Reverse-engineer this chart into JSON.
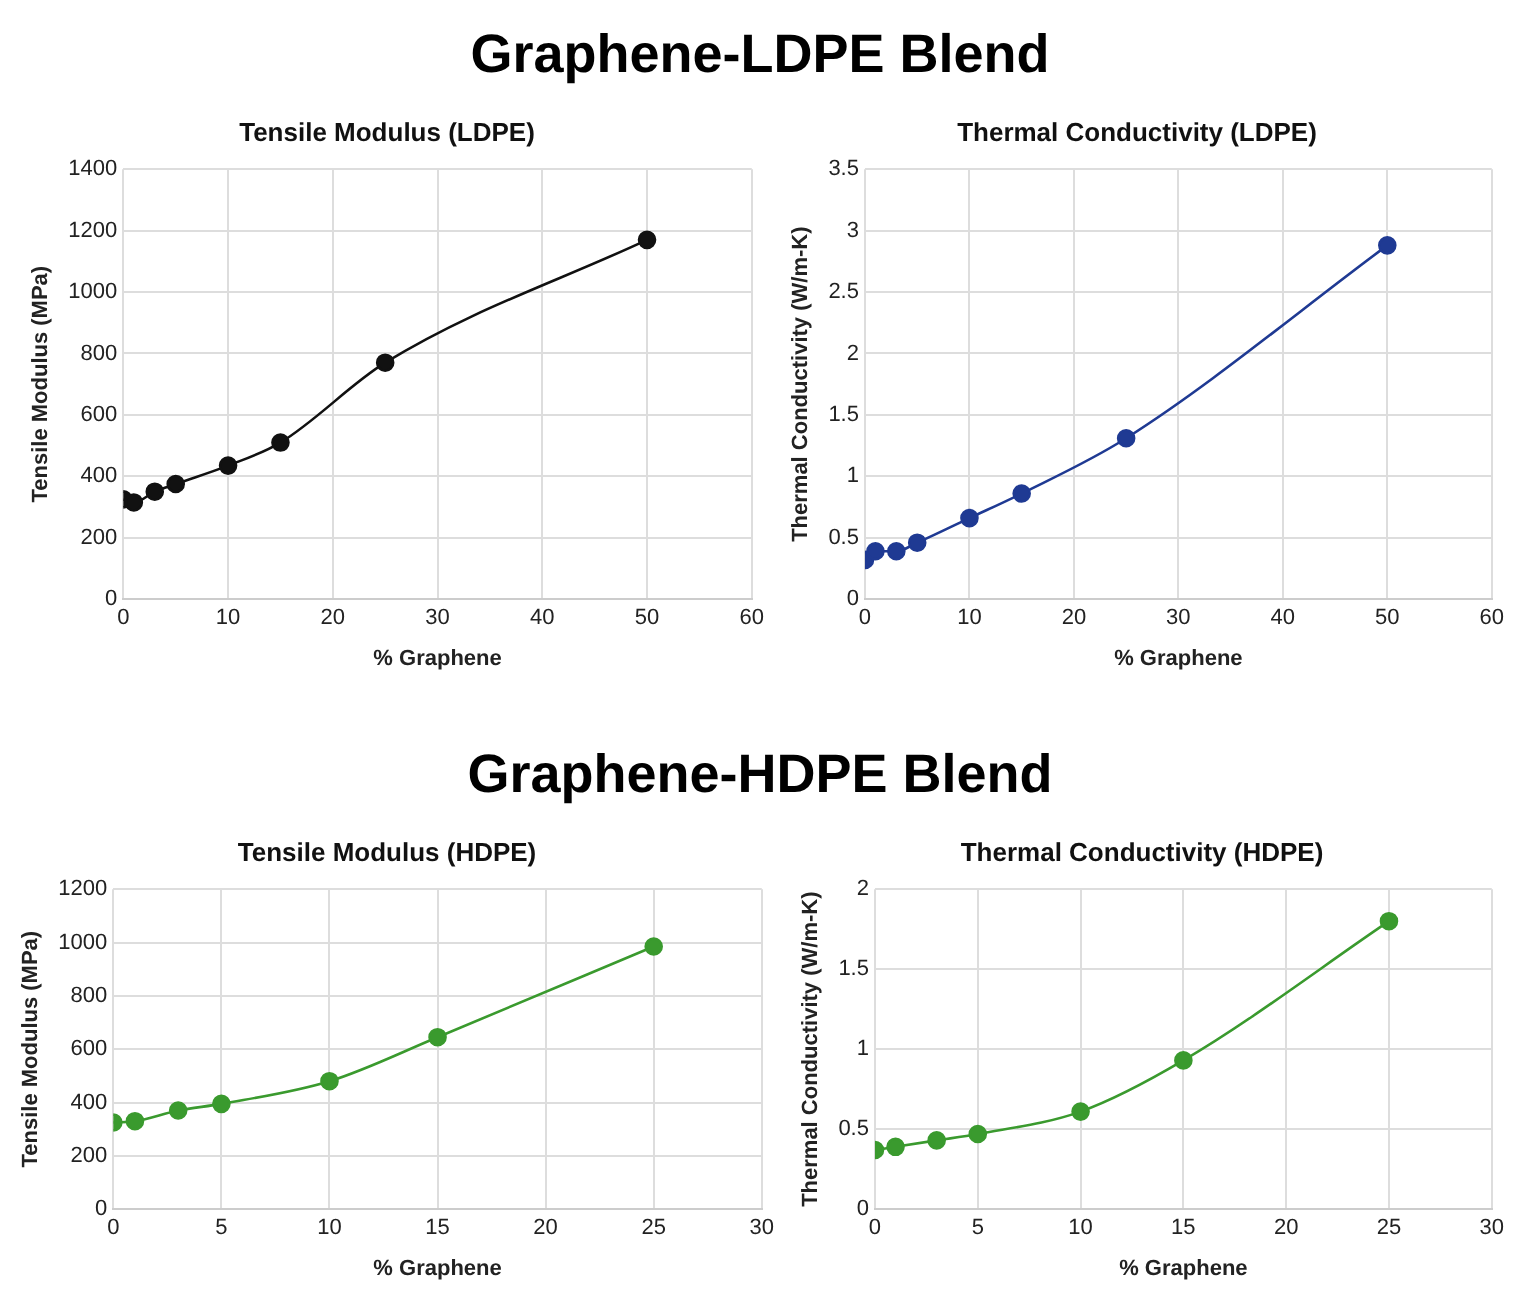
{
  "chart_data": [
    {
      "type": "line",
      "title": "Tensile Modulus (LDPE)",
      "xlabel": "% Graphene",
      "ylabel": "Tensile Modulus (MPa)",
      "annotations": [
        "Graphene-LDPE Blend"
      ],
      "xlim": [
        0,
        60
      ],
      "xticks": [
        0,
        10,
        20,
        30,
        40,
        50,
        60
      ],
      "ylim": [
        0,
        1400
      ],
      "yticks": [
        0,
        200,
        400,
        600,
        800,
        1000,
        1200,
        1400
      ],
      "grid": true,
      "marker": "circle",
      "legend": false,
      "series": [
        {
          "color": "#111111",
          "x": [
            0,
            1,
            3,
            5,
            10,
            15,
            25,
            50
          ],
          "values": [
            325,
            315,
            350,
            375,
            435,
            510,
            770,
            1170
          ]
        }
      ]
    },
    {
      "type": "line",
      "title": "Thermal Conductivity (LDPE)",
      "xlabel": "% Graphene",
      "ylabel": "Thermal Conductivity (W/m-K)",
      "xlim": [
        0,
        60
      ],
      "xticks": [
        0,
        10,
        20,
        30,
        40,
        50,
        60
      ],
      "ylim": [
        0,
        3.5
      ],
      "yticks": [
        0,
        0.5,
        1,
        1.5,
        2,
        2.5,
        3,
        3.5
      ],
      "grid": true,
      "marker": "circle",
      "legend": false,
      "series": [
        {
          "color": "#1f3a93",
          "x": [
            0,
            1,
            3,
            5,
            10,
            15,
            25,
            50
          ],
          "values": [
            0.32,
            0.39,
            0.39,
            0.46,
            0.66,
            0.86,
            1.31,
            2.88
          ]
        }
      ]
    },
    {
      "type": "line",
      "title": "Tensile Modulus (HDPE)",
      "xlabel": "% Graphene",
      "ylabel": "Tensile Modulus (MPa)",
      "annotations": [
        "Graphene-HDPE Blend"
      ],
      "xlim": [
        0,
        30
      ],
      "xticks": [
        0,
        5,
        10,
        15,
        20,
        25,
        30
      ],
      "ylim": [
        0,
        1200
      ],
      "yticks": [
        0,
        200,
        400,
        600,
        800,
        1000,
        1200
      ],
      "grid": true,
      "marker": "circle",
      "legend": false,
      "series": [
        {
          "color": "#3a9a2e",
          "x": [
            0,
            1,
            3,
            5,
            10,
            15,
            25
          ],
          "values": [
            325,
            330,
            370,
            395,
            480,
            645,
            985
          ]
        }
      ]
    },
    {
      "type": "line",
      "title": "Thermal Conductivity (HDPE)",
      "xlabel": "% Graphene",
      "ylabel": "Thermal Conductivity (W/m-K)",
      "xlim": [
        0,
        30
      ],
      "xticks": [
        0,
        5,
        10,
        15,
        20,
        25,
        30
      ],
      "ylim": [
        0,
        2
      ],
      "yticks": [
        0,
        0.5,
        1,
        1.5,
        2
      ],
      "grid": true,
      "marker": "circle",
      "legend": false,
      "series": [
        {
          "color": "#3a9a2e",
          "x": [
            0,
            1,
            3,
            5,
            10,
            15,
            25
          ],
          "values": [
            0.37,
            0.39,
            0.43,
            0.47,
            0.61,
            0.93,
            1.8
          ]
        }
      ]
    }
  ]
}
